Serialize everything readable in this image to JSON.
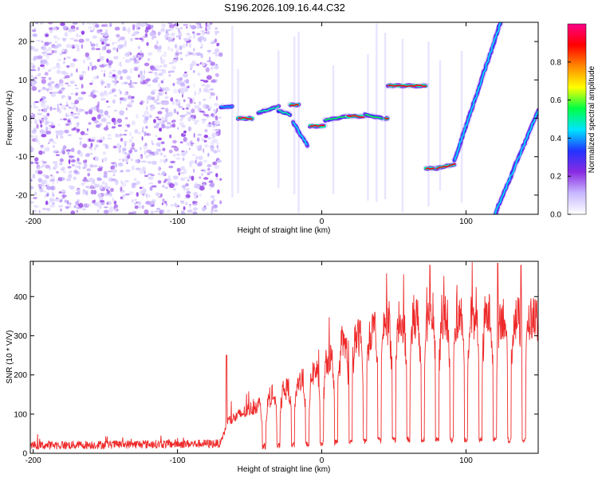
{
  "title": "S196.2026.109.16.44.C32",
  "chart_data": [
    {
      "type": "heatmap",
      "name": "spectrogram",
      "xlabel": "Height of straight line (km)",
      "ylabel": "Frequency (Hz)",
      "xlim": [
        -202,
        150
      ],
      "ylim": [
        -25,
        25
      ],
      "xticks": [
        -200,
        -100,
        0,
        100
      ],
      "yticks": [
        -20,
        -10,
        0,
        10,
        20
      ],
      "colorbar": {
        "label": "Normalized spectral amplitude",
        "range": [
          0,
          1
        ],
        "ticks": [
          "0.0",
          "0.2",
          "0.4",
          "0.6",
          "0.8"
        ],
        "tick_values": [
          0.0,
          0.2,
          0.4,
          0.6,
          0.8
        ],
        "colors": [
          "#ffffff",
          "#c8b8ff",
          "#8a2be2",
          "#2233ff",
          "#00e5ff",
          "#00ff44",
          "#ffff00",
          "#ff8800",
          "#ff0000",
          "#ff0088"
        ]
      },
      "noise_region_x": [
        -202,
        -70
      ],
      "tracks": [
        {
          "x": [
            -70,
            -62
          ],
          "y": [
            3,
            3
          ],
          "amp": 0.4
        },
        {
          "x": [
            -58,
            -48
          ],
          "y": [
            0,
            0
          ],
          "amp": 0.9
        },
        {
          "x": [
            -44,
            -30
          ],
          "y": [
            1.5,
            3
          ],
          "amp": 0.5
        },
        {
          "x": [
            -30,
            -22
          ],
          "y": [
            2,
            1
          ],
          "amp": 0.5
        },
        {
          "x": [
            -22,
            -16
          ],
          "y": [
            3.5,
            3.5
          ],
          "amp": 0.9
        },
        {
          "x": [
            -20,
            -10
          ],
          "y": [
            -1,
            -7
          ],
          "amp": 0.45
        },
        {
          "x": [
            -8,
            2
          ],
          "y": [
            -2,
            -2
          ],
          "amp": 0.9
        },
        {
          "x": [
            2,
            18
          ],
          "y": [
            -0.5,
            0.5
          ],
          "amp": 0.55
        },
        {
          "x": [
            18,
            30
          ],
          "y": [
            0.5,
            0.5
          ],
          "amp": 0.9
        },
        {
          "x": [
            30,
            42
          ],
          "y": [
            1,
            0
          ],
          "amp": 0.55
        },
        {
          "x": [
            44,
            46
          ],
          "y": [
            0,
            0
          ],
          "amp": 0.9
        },
        {
          "x": [
            46,
            72
          ],
          "y": [
            8.5,
            8.5
          ],
          "amp": 0.9
        },
        {
          "x": [
            72,
            80
          ],
          "y": [
            -13,
            -13
          ],
          "amp": 0.9
        },
        {
          "x": [
            80,
            92
          ],
          "y": [
            -13,
            -12
          ],
          "amp": 0.9
        },
        {
          "x": [
            92,
            124
          ],
          "y": [
            -11,
            25
          ],
          "amp": 0.45
        },
        {
          "x": [
            120,
            150
          ],
          "y": [
            -25,
            2
          ],
          "amp": 0.45
        }
      ]
    },
    {
      "type": "line",
      "name": "snr",
      "xlabel": "Height of straight line (km)",
      "ylabel": "SNR (10 * V/V)",
      "xlim": [
        -202,
        150
      ],
      "ylim": [
        0,
        490
      ],
      "xticks": [
        -200,
        -100,
        0,
        100
      ],
      "yticks": [
        0,
        100,
        200,
        300,
        400
      ],
      "color": "#ee2a2a",
      "envelope": {
        "x": [
          -202,
          -70,
          -65,
          -60,
          -50,
          -40,
          -30,
          -20,
          -10,
          0,
          10,
          20,
          30,
          40,
          50,
          60,
          70,
          80,
          90,
          100,
          110,
          120,
          130,
          140,
          150
        ],
        "baseline": [
          20,
          25,
          80,
          90,
          110,
          130,
          150,
          170,
          190,
          220,
          250,
          280,
          300,
          320,
          330,
          335,
          335,
          340,
          340,
          340,
          345,
          345,
          340,
          335,
          340
        ]
      },
      "spikes": [
        {
          "x": -66,
          "y": 250
        },
        {
          "x": 75,
          "y": 480
        },
        {
          "x": 122,
          "y": 485
        },
        {
          "x": 138,
          "y": 480
        }
      ],
      "dips_x": [
        -40,
        -30,
        -20,
        -10,
        0,
        10,
        20,
        30,
        40,
        50,
        60,
        70,
        80,
        90,
        100,
        110,
        120,
        130,
        140
      ]
    }
  ]
}
